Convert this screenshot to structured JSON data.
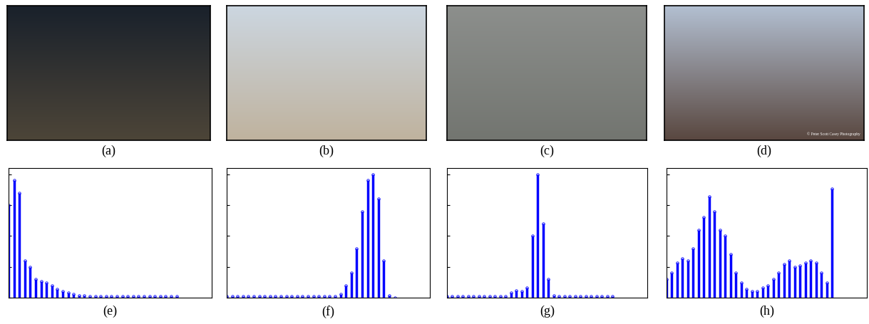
{
  "images": [
    {
      "caption": "(a)"
    },
    {
      "caption": "(b)"
    },
    {
      "caption": "(c)"
    },
    {
      "caption": "(d)",
      "watermark": "© Peter Scott Casey Photography"
    }
  ],
  "chart_data": [
    {
      "type": "stem",
      "xlabel": "(e)",
      "color": "#0000ff",
      "marker": "o",
      "tick_labels": false,
      "xlim": [
        0,
        300
      ],
      "ylim": [
        0,
        1.05
      ],
      "yticks": [
        0,
        0.25,
        0.5,
        0.75,
        1.0
      ],
      "x": [
        0,
        8,
        16,
        24,
        32,
        40,
        48,
        56,
        64,
        72,
        80,
        88,
        96,
        104,
        112,
        120,
        128,
        136,
        144,
        152,
        160,
        168,
        176,
        184,
        192,
        200,
        208,
        216,
        224,
        232,
        240,
        248
      ],
      "values": [
        0.75,
        0.95,
        0.85,
        0.3,
        0.25,
        0.15,
        0.13,
        0.12,
        0.1,
        0.07,
        0.05,
        0.04,
        0.03,
        0.02,
        0.015,
        0.01,
        0.01,
        0.01,
        0.01,
        0.01,
        0.01,
        0.01,
        0.01,
        0.01,
        0.01,
        0.01,
        0.01,
        0.01,
        0.01,
        0.01,
        0.01,
        0.01
      ]
    },
    {
      "type": "stem",
      "xlabel": "(f)",
      "color": "#0000ff",
      "marker": "o",
      "tick_labels": false,
      "xlim": [
        0,
        300
      ],
      "ylim": [
        0,
        1.05
      ],
      "yticks": [
        0,
        0.25,
        0.5,
        0.75,
        1.0
      ],
      "x": [
        0,
        8,
        16,
        24,
        32,
        40,
        48,
        56,
        64,
        72,
        80,
        88,
        96,
        104,
        112,
        120,
        128,
        136,
        144,
        152,
        160,
        168,
        176,
        184,
        192,
        200,
        208,
        216,
        224,
        232,
        240,
        248
      ],
      "values": [
        0.01,
        0.01,
        0.01,
        0.01,
        0.01,
        0.01,
        0.01,
        0.01,
        0.01,
        0.01,
        0.01,
        0.01,
        0.01,
        0.01,
        0.01,
        0.01,
        0.01,
        0.01,
        0.01,
        0.01,
        0.01,
        0.03,
        0.1,
        0.2,
        0.4,
        0.7,
        0.95,
        1.0,
        0.8,
        0.3,
        0.02,
        0.0
      ]
    },
    {
      "type": "stem",
      "xlabel": "(g)",
      "color": "#0000ff",
      "marker": "o",
      "tick_labels": false,
      "xlim": [
        0,
        300
      ],
      "ylim": [
        0,
        1.05
      ],
      "yticks": [
        0,
        0.25,
        0.5,
        0.75,
        1.0
      ],
      "x": [
        0,
        8,
        16,
        24,
        32,
        40,
        48,
        56,
        64,
        72,
        80,
        88,
        96,
        104,
        112,
        120,
        128,
        136,
        144,
        152,
        160,
        168,
        176,
        184,
        192,
        200,
        208,
        216,
        224,
        232,
        240,
        248
      ],
      "values": [
        0.01,
        0.01,
        0.01,
        0.01,
        0.01,
        0.01,
        0.01,
        0.01,
        0.01,
        0.01,
        0.01,
        0.01,
        0.04,
        0.06,
        0.05,
        0.08,
        0.5,
        1.0,
        0.6,
        0.15,
        0.02,
        0.01,
        0.01,
        0.01,
        0.01,
        0.01,
        0.01,
        0.01,
        0.01,
        0.01,
        0.01,
        0.01
      ]
    },
    {
      "type": "stem",
      "xlabel": "(h)",
      "color": "#0000ff",
      "marker": "o",
      "tick_labels": false,
      "xlim": [
        0,
        300
      ],
      "ylim": [
        0,
        1.05
      ],
      "yticks": [
        0,
        0.25,
        0.5,
        0.75,
        1.0
      ],
      "x": [
        0,
        8,
        16,
        24,
        32,
        40,
        48,
        56,
        64,
        72,
        80,
        88,
        96,
        104,
        112,
        120,
        128,
        136,
        144,
        152,
        160,
        168,
        176,
        184,
        192,
        200,
        208,
        216,
        224,
        232,
        240,
        248
      ],
      "values": [
        0.15,
        0.2,
        0.28,
        0.32,
        0.3,
        0.4,
        0.55,
        0.65,
        0.82,
        0.7,
        0.55,
        0.5,
        0.35,
        0.2,
        0.12,
        0.07,
        0.05,
        0.05,
        0.08,
        0.1,
        0.15,
        0.2,
        0.27,
        0.3,
        0.25,
        0.26,
        0.28,
        0.3,
        0.28,
        0.2,
        0.12,
        0.88
      ]
    }
  ]
}
